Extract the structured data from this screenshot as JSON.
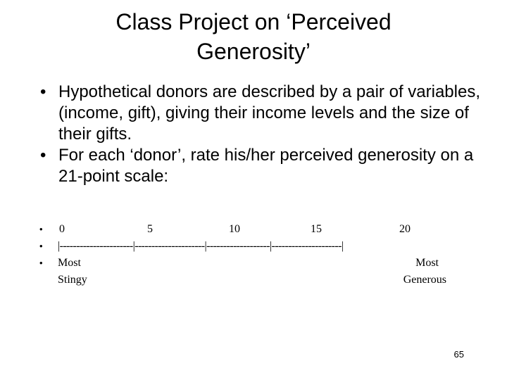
{
  "slide": {
    "title_line1": "Class Project on ‘Perceived",
    "title_line2": "Generosity’",
    "bullets": [
      "Hypothetical donors are described by a pair of variables, (income, gift), giving their income levels and the size of their gifts.",
      "For each ‘donor’, rate his/her perceived generosity on a 21-point scale:"
    ],
    "bullet_glyph": "•",
    "page_number": "65"
  },
  "scale": {
    "ticks": [
      "0",
      "5",
      "10",
      "15",
      "20"
    ],
    "rule": "|----------------------|---------------------|-------------------|---------------------|",
    "left_anchor": [
      "Most",
      "Stingy"
    ],
    "right_anchor": [
      "Most",
      "Generous"
    ]
  }
}
